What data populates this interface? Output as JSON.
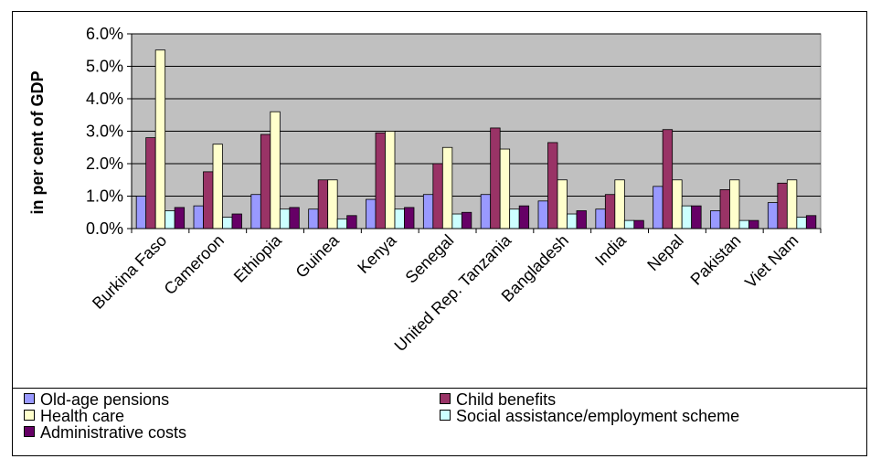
{
  "chart_data": {
    "type": "bar",
    "title": "",
    "xlabel": "",
    "ylabel": "in per cent of GDP",
    "ylim": [
      0,
      6
    ],
    "yticks": [
      "0.0%",
      "1.0%",
      "2.0%",
      "3.0%",
      "4.0%",
      "5.0%",
      "6.0%"
    ],
    "grid": true,
    "legend_position": "bottom",
    "categories": [
      "Burkina Faso",
      "Cameroon",
      "Ethiopia",
      "Guinea",
      "Kenya",
      "Senegal",
      "United Rep. Tanzania",
      "Bangladesh",
      "India",
      "Nepal",
      "Pakistan",
      "Viet Nam"
    ],
    "series": [
      {
        "name": "Old-age pensions",
        "color": "#9999FF",
        "values": [
          1.0,
          0.7,
          1.05,
          0.6,
          0.9,
          1.05,
          1.05,
          0.85,
          0.6,
          1.3,
          0.55,
          0.8
        ]
      },
      {
        "name": "Child benefits",
        "color": "#993366",
        "values": [
          2.8,
          1.75,
          2.9,
          1.5,
          2.95,
          2.0,
          3.1,
          2.65,
          1.05,
          3.05,
          1.2,
          1.4
        ]
      },
      {
        "name": "Health care",
        "color": "#FFFFCC",
        "values": [
          5.5,
          2.6,
          3.6,
          1.5,
          3.0,
          2.5,
          2.45,
          1.5,
          1.5,
          1.5,
          1.5,
          1.5
        ]
      },
      {
        "name": "Social assistance/employment scheme",
        "color": "#CCFFFF",
        "values": [
          0.55,
          0.35,
          0.6,
          0.3,
          0.6,
          0.45,
          0.6,
          0.45,
          0.25,
          0.7,
          0.25,
          0.35
        ]
      },
      {
        "name": "Administrative costs",
        "color": "#660066",
        "values": [
          0.65,
          0.45,
          0.65,
          0.4,
          0.65,
          0.5,
          0.7,
          0.55,
          0.25,
          0.7,
          0.25,
          0.4
        ]
      }
    ]
  }
}
